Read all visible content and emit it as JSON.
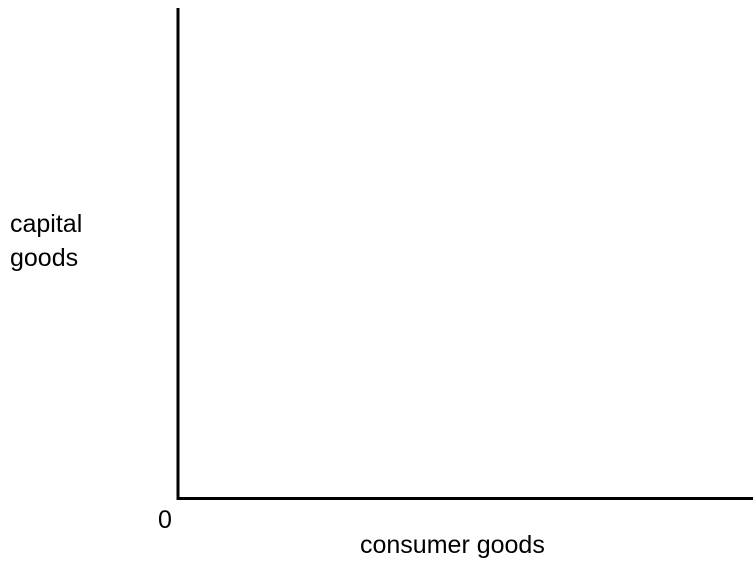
{
  "diagram": {
    "y_axis_label_line1": "capital",
    "y_axis_label_line2": "goods",
    "x_axis_label": "consumer goods",
    "origin_label": "0",
    "axis_color": "#000000"
  }
}
